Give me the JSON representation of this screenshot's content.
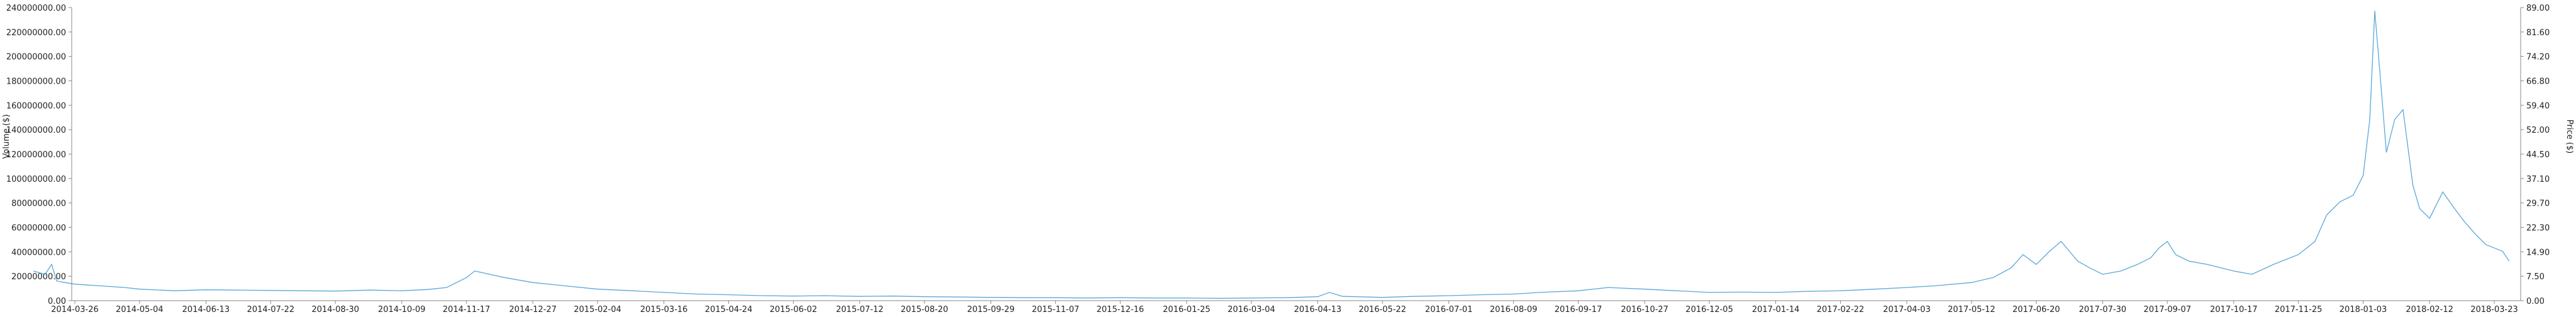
{
  "chart_data": {
    "type": "line",
    "title": "",
    "xlabel": "",
    "ylabel_left": "Volume ($)",
    "ylabel_right": "Price ($)",
    "x_ticks": [
      "2014-03-26",
      "2014-05-04",
      "2014-06-13",
      "2014-07-22",
      "2014-08-30",
      "2014-10-09",
      "2014-11-17",
      "2014-12-27",
      "2015-02-04",
      "2015-03-16",
      "2015-04-24",
      "2015-06-02",
      "2015-07-12",
      "2015-08-20",
      "2015-09-29",
      "2015-11-07",
      "2015-12-16",
      "2016-01-25",
      "2016-03-04",
      "2016-04-13",
      "2016-05-22",
      "2016-07-01",
      "2016-08-09",
      "2016-09-17",
      "2016-10-27",
      "2016-12-05",
      "2017-01-14",
      "2017-02-22",
      "2017-04-03",
      "2017-05-12",
      "2017-06-20",
      "2017-07-30",
      "2017-09-07",
      "2017-10-17",
      "2017-11-25",
      "2018-01-03",
      "2018-02-12",
      "2018-03-23"
    ],
    "y_left_ticks": [
      "0.00",
      "20000000.00",
      "40000000.00",
      "60000000.00",
      "80000000.00",
      "100000000.00",
      "120000000.00",
      "140000000.00",
      "160000000.00",
      "180000000.00",
      "200000000.00",
      "220000000.00",
      "240000000.00"
    ],
    "y_right_ticks": [
      "0.00",
      "7.50",
      "14.90",
      "22.30",
      "29.70",
      "37.10",
      "44.50",
      "52.00",
      "59.40",
      "66.80",
      "74.20",
      "81.60",
      "89.00"
    ],
    "y_left_range": [
      0,
      240000000
    ],
    "y_right_range": [
      0,
      89
    ],
    "grid": false,
    "legend": "none",
    "line_color": "#5aa7d9",
    "series": [
      {
        "axis": "right",
        "points": [
          [
            "2014-03-01",
            9.0
          ],
          [
            "2014-03-08",
            8.0
          ],
          [
            "2014-03-12",
            11.0
          ],
          [
            "2014-03-15",
            6.0
          ],
          [
            "2014-03-20",
            5.5
          ],
          [
            "2014-03-26",
            5.0
          ],
          [
            "2014-04-10",
            4.5
          ],
          [
            "2014-04-25",
            4.0
          ],
          [
            "2014-05-04",
            3.5
          ],
          [
            "2014-05-25",
            3.0
          ],
          [
            "2014-06-13",
            3.3
          ],
          [
            "2014-07-01",
            3.2
          ],
          [
            "2014-07-22",
            3.1
          ],
          [
            "2014-08-10",
            3.0
          ],
          [
            "2014-08-30",
            2.9
          ],
          [
            "2014-09-20",
            3.2
          ],
          [
            "2014-10-09",
            3.0
          ],
          [
            "2014-10-25",
            3.4
          ],
          [
            "2014-11-05",
            4.0
          ],
          [
            "2014-11-17",
            7.0
          ],
          [
            "2014-11-22",
            9.0
          ],
          [
            "2014-12-01",
            8.0
          ],
          [
            "2014-12-10",
            7.0
          ],
          [
            "2014-12-27",
            5.5
          ],
          [
            "2015-01-15",
            4.5
          ],
          [
            "2015-02-04",
            3.5
          ],
          [
            "2015-02-25",
            3.0
          ],
          [
            "2015-03-16",
            2.5
          ],
          [
            "2015-04-05",
            2.0
          ],
          [
            "2015-04-24",
            1.8
          ],
          [
            "2015-05-15",
            1.5
          ],
          [
            "2015-06-02",
            1.4
          ],
          [
            "2015-06-20",
            1.5
          ],
          [
            "2015-07-12",
            1.3
          ],
          [
            "2015-08-01",
            1.4
          ],
          [
            "2015-08-20",
            1.2
          ],
          [
            "2015-09-10",
            1.1
          ],
          [
            "2015-09-29",
            1.0
          ],
          [
            "2015-10-20",
            0.9
          ],
          [
            "2015-11-07",
            0.9
          ],
          [
            "2015-11-25",
            0.8
          ],
          [
            "2015-12-16",
            0.9
          ],
          [
            "2016-01-05",
            0.8
          ],
          [
            "2016-01-25",
            0.8
          ],
          [
            "2016-02-15",
            0.7
          ],
          [
            "2016-03-04",
            0.8
          ],
          [
            "2016-03-25",
            0.9
          ],
          [
            "2016-04-13",
            1.2
          ],
          [
            "2016-04-20",
            2.5
          ],
          [
            "2016-04-28",
            1.3
          ],
          [
            "2016-05-22",
            1.0
          ],
          [
            "2016-06-10",
            1.3
          ],
          [
            "2016-07-01",
            1.5
          ],
          [
            "2016-07-20",
            1.8
          ],
          [
            "2016-08-09",
            2.0
          ],
          [
            "2016-08-25",
            2.5
          ],
          [
            "2016-09-17",
            3.0
          ],
          [
            "2016-10-05",
            4.0
          ],
          [
            "2016-10-27",
            3.5
          ],
          [
            "2016-11-15",
            3.0
          ],
          [
            "2016-12-05",
            2.5
          ],
          [
            "2016-12-25",
            2.6
          ],
          [
            "2017-01-14",
            2.5
          ],
          [
            "2017-02-01",
            2.8
          ],
          [
            "2017-02-22",
            3.0
          ],
          [
            "2017-03-15",
            3.5
          ],
          [
            "2017-04-03",
            4.0
          ],
          [
            "2017-04-20",
            4.5
          ],
          [
            "2017-05-12",
            5.5
          ],
          [
            "2017-05-25",
            7.0
          ],
          [
            "2017-06-05",
            10.0
          ],
          [
            "2017-06-12",
            14.0
          ],
          [
            "2017-06-20",
            11.0
          ],
          [
            "2017-06-28",
            15.0
          ],
          [
            "2017-07-05",
            18.0
          ],
          [
            "2017-07-10",
            15.0
          ],
          [
            "2017-07-15",
            12.0
          ],
          [
            "2017-07-22",
            10.0
          ],
          [
            "2017-07-30",
            8.0
          ],
          [
            "2017-08-10",
            9.0
          ],
          [
            "2017-08-20",
            11.0
          ],
          [
            "2017-08-28",
            13.0
          ],
          [
            "2017-09-02",
            16.0
          ],
          [
            "2017-09-07",
            18.0
          ],
          [
            "2017-09-12",
            14.0
          ],
          [
            "2017-09-20",
            12.0
          ],
          [
            "2017-10-01",
            11.0
          ],
          [
            "2017-10-17",
            9.0
          ],
          [
            "2017-10-28",
            8.0
          ],
          [
            "2017-11-10",
            11.0
          ],
          [
            "2017-11-25",
            14.0
          ],
          [
            "2017-12-05",
            18.0
          ],
          [
            "2017-12-12",
            26.0
          ],
          [
            "2017-12-20",
            30.0
          ],
          [
            "2017-12-28",
            32.0
          ],
          [
            "2018-01-03",
            38.0
          ],
          [
            "2018-01-07",
            55.0
          ],
          [
            "2018-01-10",
            88.0
          ],
          [
            "2018-01-13",
            70.0
          ],
          [
            "2018-01-17",
            45.0
          ],
          [
            "2018-01-22",
            55.0
          ],
          [
            "2018-01-27",
            58.0
          ],
          [
            "2018-02-02",
            35.0
          ],
          [
            "2018-02-06",
            28.0
          ],
          [
            "2018-02-12",
            25.0
          ],
          [
            "2018-02-20",
            33.0
          ],
          [
            "2018-02-27",
            28.0
          ],
          [
            "2018-03-05",
            24.0
          ],
          [
            "2018-03-12",
            20.0
          ],
          [
            "2018-03-18",
            17.0
          ],
          [
            "2018-03-23",
            16.0
          ],
          [
            "2018-03-28",
            15.0
          ],
          [
            "2018-04-01",
            12.0
          ]
        ]
      }
    ]
  }
}
